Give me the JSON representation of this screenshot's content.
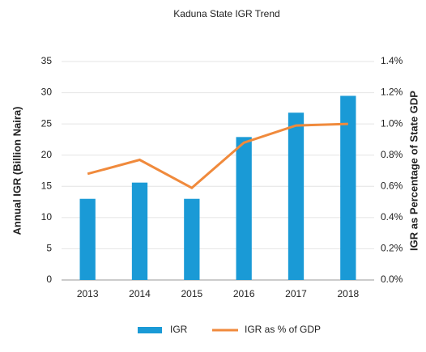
{
  "chart_data": {
    "type": "bar_line",
    "title": "Kaduna State IGR Trend",
    "y_label": "Annual IGR (Billion Naira)",
    "y2_label": "IGR as Percentage of State GDP",
    "categories": [
      "2013",
      "2014",
      "2015",
      "2016",
      "2017",
      "2018"
    ],
    "series": [
      {
        "name": "IGR",
        "type": "bar",
        "color": "#1a9ad6",
        "values": [
          13.0,
          15.6,
          13.0,
          22.9,
          26.8,
          29.5
        ]
      },
      {
        "name": "IGR as % of GDP",
        "type": "line",
        "axis": "y2",
        "color": "#f08a3c",
        "values": [
          0.68,
          0.77,
          0.59,
          0.88,
          0.99,
          1.0
        ]
      }
    ],
    "ylim": [
      0,
      35
    ],
    "yticks": [
      0,
      5,
      10,
      15,
      20,
      25,
      30,
      35
    ],
    "y2lim": [
      0,
      1.4
    ],
    "y2ticks": [
      {
        "value": 0,
        "label": "0.0%"
      },
      {
        "value": 0.2,
        "label": "0.2%"
      },
      {
        "value": 0.4,
        "label": "0.4%"
      },
      {
        "value": 0.6,
        "label": "0.6%"
      },
      {
        "value": 0.8,
        "label": "0.8%"
      },
      {
        "value": 1.0,
        "label": "1.0%"
      },
      {
        "value": 1.2,
        "label": "1.2%"
      },
      {
        "value": 1.4,
        "label": "1.4%"
      }
    ],
    "grid": true,
    "legend": "bottom"
  }
}
